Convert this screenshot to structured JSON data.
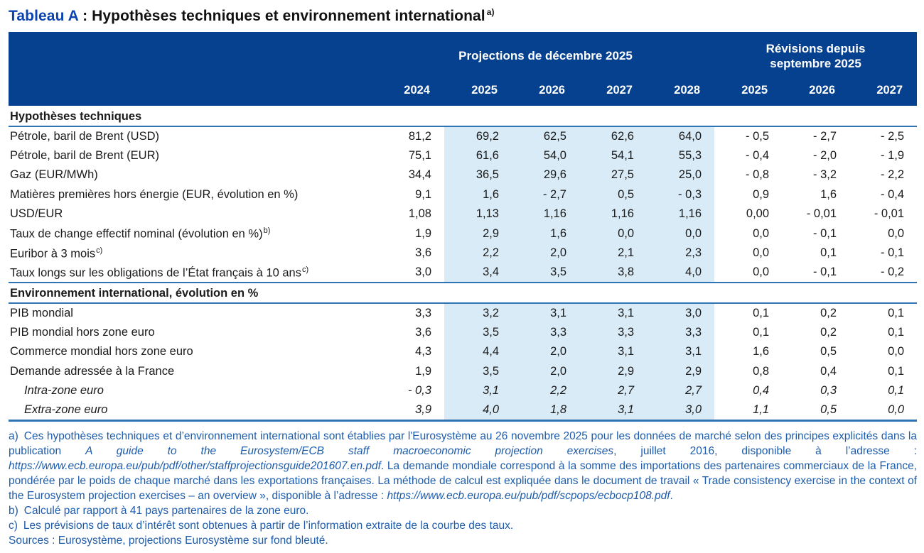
{
  "title": {
    "prefix": "Tableau A",
    "rest": " : Hypothèses techniques et environnement international",
    "note_ref": "a)"
  },
  "colors": {
    "header_bg": "#05418e",
    "shade_bg": "#d9ebf7",
    "rule_blue": "#2e74b5",
    "title_blue": "#0b44af",
    "footnote_blue": "#1d5cac"
  },
  "table": {
    "group_headers": [
      {
        "name": "group-header-projections",
        "lines": [
          "Projections de décembre 2025"
        ],
        "span": 5
      },
      {
        "name": "group-header-revisions",
        "lines": [
          "Révisions depuis",
          "septembre 2025"
        ],
        "span": 3
      }
    ],
    "year_headers": [
      "2024",
      "2025",
      "2026",
      "2027",
      "2028",
      "2025",
      "2026",
      "2027"
    ],
    "shaded_value_indices": [
      1,
      2,
      3,
      4
    ],
    "sections": [
      {
        "title": "Hypothèses techniques",
        "rows": [
          {
            "label": "Pétrole, baril de Brent (USD)",
            "sup": "",
            "italic": false,
            "indent": false,
            "values": [
              "81,2",
              "69,2",
              "62,5",
              "62,6",
              "64,0",
              "- 0,5",
              "- 2,7",
              "- 2,5"
            ]
          },
          {
            "label": "Pétrole, baril de Brent (EUR)",
            "sup": "",
            "italic": false,
            "indent": false,
            "values": [
              "75,1",
              "61,6",
              "54,0",
              "54,1",
              "55,3",
              "- 0,4",
              "- 2,0",
              "- 1,9"
            ]
          },
          {
            "label": "Gaz (EUR/MWh)",
            "sup": "",
            "italic": false,
            "indent": false,
            "values": [
              "34,4",
              "36,5",
              "29,6",
              "27,5",
              "25,0",
              "- 0,8",
              "- 3,2",
              "- 2,2"
            ]
          },
          {
            "label": "Matières premières hors énergie (EUR, évolution en %)",
            "sup": "",
            "italic": false,
            "indent": false,
            "values": [
              "9,1",
              "1,6",
              "- 2,7",
              "0,5",
              "- 0,3",
              "0,9",
              "1,6",
              "- 0,4"
            ]
          },
          {
            "label": "USD/EUR",
            "sup": "",
            "italic": false,
            "indent": false,
            "values": [
              "1,08",
              "1,13",
              "1,16",
              "1,16",
              "1,16",
              "0,00",
              "- 0,01",
              "- 0,01"
            ]
          },
          {
            "label": "Taux de change effectif nominal (évolution en %)",
            "sup": "b)",
            "italic": false,
            "indent": false,
            "values": [
              "1,9",
              "2,9",
              "1,6",
              "0,0",
              "0,0",
              "0,0",
              "- 0,1",
              "0,0"
            ]
          },
          {
            "label": "Euribor à 3 mois",
            "sup": "c)",
            "italic": false,
            "indent": false,
            "values": [
              "3,6",
              "2,2",
              "2,0",
              "2,1",
              "2,3",
              "0,0",
              "0,1",
              "- 0,1"
            ]
          },
          {
            "label": "Taux longs sur les obligations de l’État français à 10 ans",
            "sup": "c)",
            "italic": false,
            "indent": false,
            "values": [
              "3,0",
              "3,4",
              "3,5",
              "3,8",
              "4,0",
              "0,0",
              "- 0,1",
              "- 0,2"
            ]
          }
        ]
      },
      {
        "title": "Environnement international, évolution en %",
        "rows": [
          {
            "label": "PIB mondial",
            "sup": "",
            "italic": false,
            "indent": false,
            "values": [
              "3,3",
              "3,2",
              "3,1",
              "3,1",
              "3,0",
              "0,1",
              "0,2",
              "0,1"
            ]
          },
          {
            "label": "PIB mondial hors zone euro",
            "sup": "",
            "italic": false,
            "indent": false,
            "values": [
              "3,6",
              "3,5",
              "3,3",
              "3,3",
              "3,3",
              "0,1",
              "0,2",
              "0,1"
            ]
          },
          {
            "label": "Commerce mondial hors zone euro",
            "sup": "",
            "italic": false,
            "indent": false,
            "values": [
              "4,3",
              "4,4",
              "2,0",
              "3,1",
              "3,1",
              "1,6",
              "0,5",
              "0,0"
            ]
          },
          {
            "label": "Demande adressée à la France",
            "sup": "",
            "italic": false,
            "indent": false,
            "values": [
              "1,9",
              "3,5",
              "2,0",
              "2,9",
              "2,9",
              "0,8",
              "0,4",
              "0,1"
            ]
          },
          {
            "label": "Intra-zone euro",
            "sup": "",
            "italic": true,
            "indent": true,
            "values": [
              "- 0,3",
              "3,1",
              "2,2",
              "2,7",
              "2,7",
              "0,4",
              "0,3",
              "0,1"
            ]
          },
          {
            "label": "Extra-zone euro",
            "sup": "",
            "italic": true,
            "indent": true,
            "values": [
              "3,9",
              "4,0",
              "1,8",
              "3,1",
              "3,0",
              "1,1",
              "0,5",
              "0,0"
            ]
          }
        ]
      }
    ]
  },
  "footnotes": [
    {
      "marker": "a)",
      "justify": true,
      "segments": [
        {
          "text": "Ces hypothèses techniques et d’environnement international sont établies par l'Eurosystème au 26 novembre 2025 pour les données de marché selon des principes explicités dans la publication ",
          "italic": false,
          "url": false
        },
        {
          "text": "A guide to the Eurosystem/ECB staff macroeconomic projection exercises",
          "italic": true,
          "url": false
        },
        {
          "text": ", juillet 2016, disponible à l’adresse : ",
          "italic": false,
          "url": false
        },
        {
          "text": "https://www.ecb.europa.eu/pub/pdf/other/staffprojectionsguide201607.en.pdf",
          "italic": true,
          "url": true
        },
        {
          "text": ". La demande mondiale correspond à la somme des importations des partenaires commerciaux de la France, pondérée par le poids de chaque marché dans les exportations françaises. La méthode de calcul est expliquée dans le document de travail « Trade consistency exercise in the context of the Eurosystem projection exercises – an overview », disponible à l’adresse : ",
          "italic": false,
          "url": false
        },
        {
          "text": "https://www.ecb.europa.eu/pub/pdf/scpops/ecbocp108.pdf",
          "italic": true,
          "url": true
        },
        {
          "text": ".",
          "italic": false,
          "url": false
        }
      ]
    },
    {
      "marker": "b)",
      "justify": false,
      "segments": [
        {
          "text": "Calculé par rapport à 41 pays partenaires de la zone euro.",
          "italic": false,
          "url": false
        }
      ]
    },
    {
      "marker": "c)",
      "justify": false,
      "segments": [
        {
          "text": "Les prévisions de taux d’intérêt sont obtenues à partir de l’information extraite de la courbe des taux.",
          "italic": false,
          "url": false
        }
      ]
    },
    {
      "marker": "",
      "justify": false,
      "segments": [
        {
          "text": "Sources : Eurosystème, projections Eurosystème sur fond bleuté.",
          "italic": false,
          "url": false
        }
      ]
    }
  ]
}
